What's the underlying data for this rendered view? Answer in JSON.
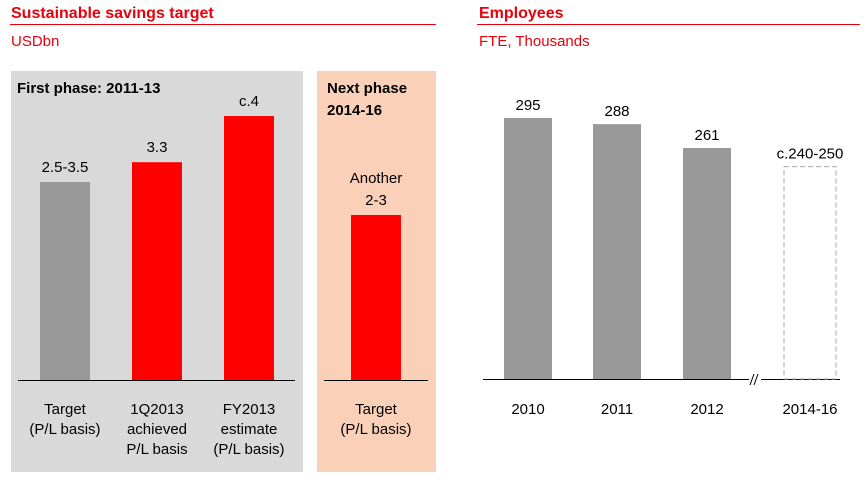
{
  "colors": {
    "accent": "#e8000d",
    "actual": "#ff0000",
    "gray_bar": "#999999",
    "panel_first": "#d9d9d9",
    "panel_next": "#fbd0b9"
  },
  "chart_data": [
    {
      "type": "bar",
      "title": "Sustainable savings target",
      "subtitle": "USDbn",
      "groups": [
        {
          "label": "First phase: 2011-13",
          "categories": [
            [
              "Target",
              "(P/L basis)"
            ],
            [
              "1Q2013",
              "achieved",
              "P/L basis"
            ],
            [
              "FY2013",
              "estimate",
              "(P/L basis)"
            ]
          ],
          "values": [
            3,
            3.3,
            4
          ],
          "value_labels": [
            "2.5-3.5",
            "3.3",
            "c.4"
          ],
          "colors": [
            "#999999",
            "#ff0000",
            "#ff0000"
          ]
        },
        {
          "label": "Next phase 2014-16",
          "categories": [
            [
              "Target",
              "(P/L basis)"
            ]
          ],
          "values": [
            2.5
          ],
          "value_labels": [
            [
              "Another",
              "2-3"
            ]
          ],
          "colors": [
            "#ff0000"
          ]
        }
      ],
      "ylim": [
        0,
        4.2
      ],
      "grid": false
    },
    {
      "type": "bar",
      "title": "Employees",
      "subtitle": "FTE, Thousands",
      "categories": [
        "2010",
        "2011",
        "2012",
        "2014-16"
      ],
      "values": [
        295,
        288,
        261,
        240
      ],
      "value_labels": [
        "295",
        "288",
        "261",
        "c.240-250"
      ],
      "styles": [
        "solid",
        "solid",
        "solid",
        "dashed"
      ],
      "axis_break": true,
      "grid": false
    }
  ]
}
